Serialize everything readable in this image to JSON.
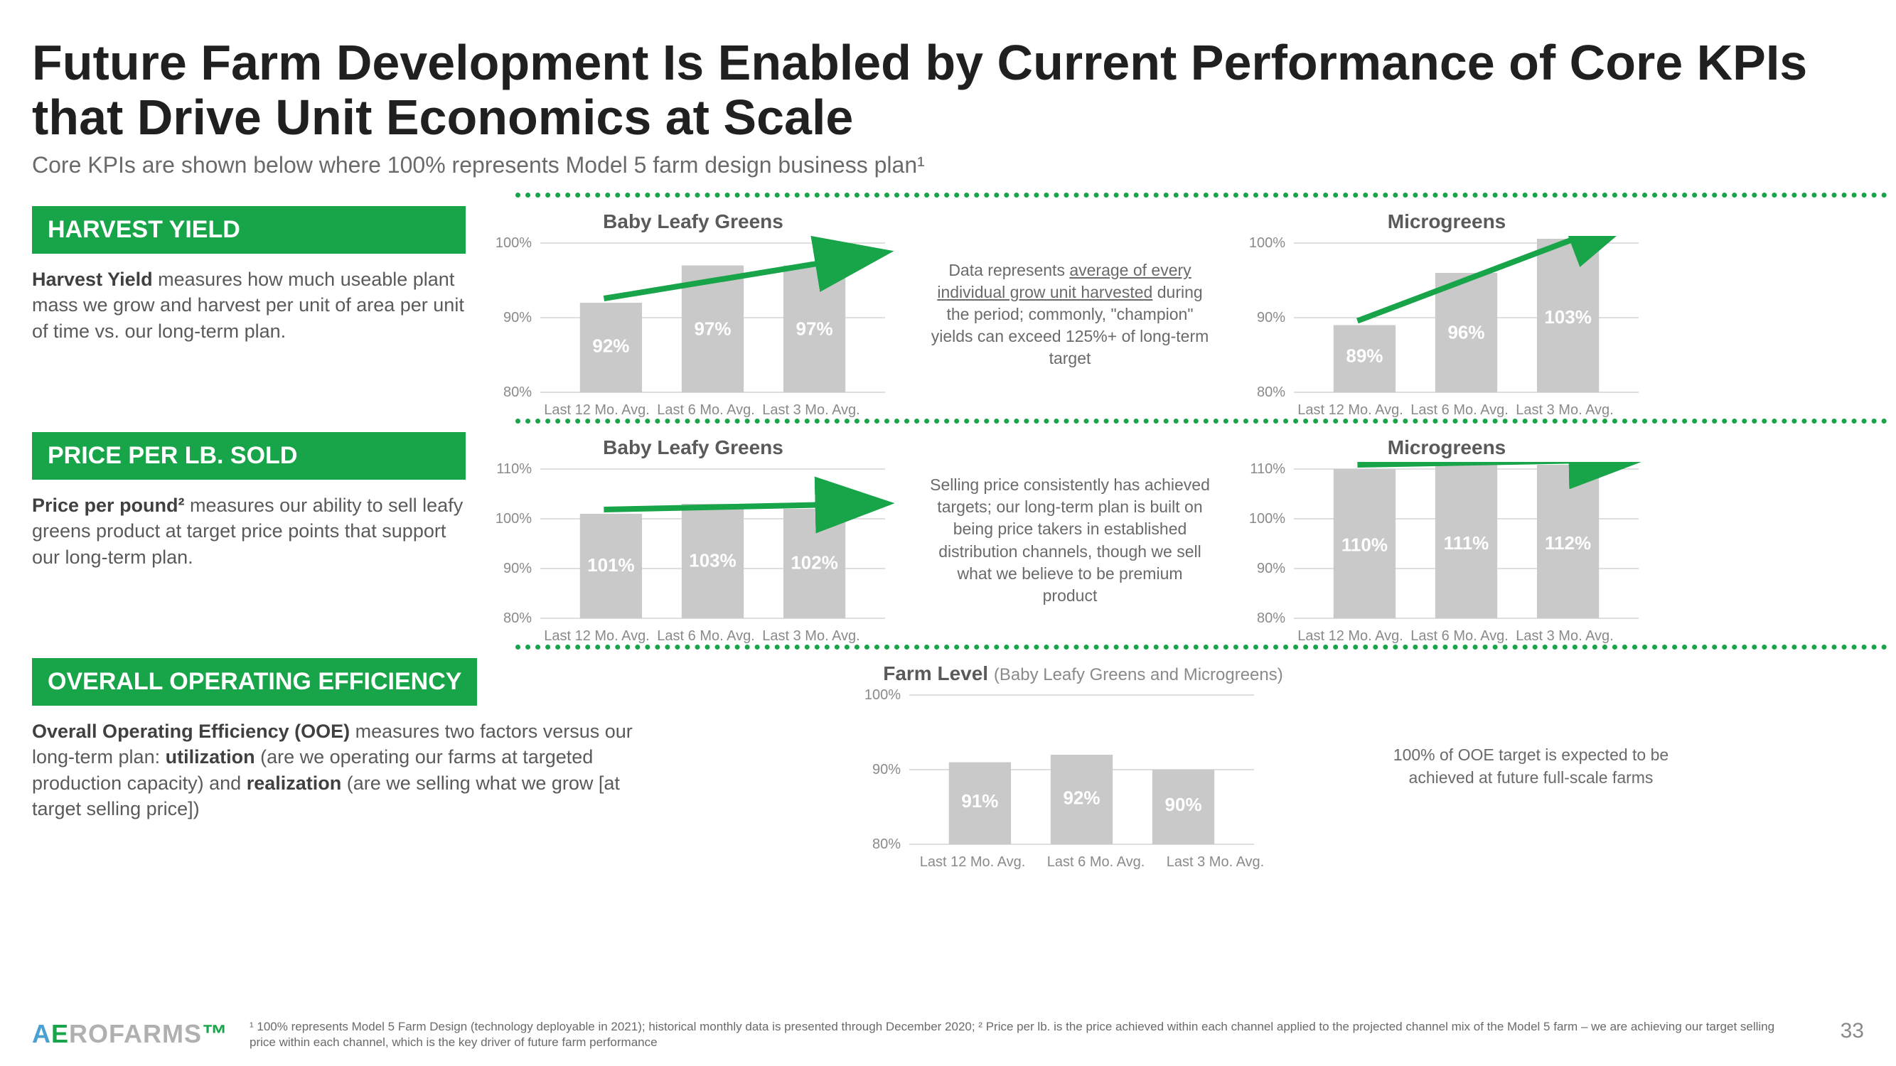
{
  "title": "Future Farm Development Is Enabled by Current Performance of Core KPIs that Drive Unit Economics at Scale",
  "subtitle": "Core KPIs are shown below where 100% represents Model 5 farm design business plan¹",
  "colors": {
    "brand_green": "#18a448",
    "bar_fill": "#c9c9c9",
    "bar_text": "#ffffff",
    "grid": "#bfbfbf",
    "axis_label": "#8a8a8a",
    "arrow": "#18a448"
  },
  "x_categories": [
    "Last 12 Mo. Avg.",
    "Last 6 Mo. Avg.",
    "Last 3 Mo. Avg."
  ],
  "sections": [
    {
      "header": "HARVEST YIELD",
      "desc_html": "<b>Harvest Yield</b> measures how much useable plant mass we grow and harvest per unit of area per unit of time vs. our long-term plan.",
      "charts": [
        {
          "title": "Baby Leafy Greens",
          "ymin": 80,
          "ymax": 100,
          "ystep": 10,
          "values": [
            92,
            97,
            97
          ],
          "arrow": true
        },
        {
          "title": "Microgreens",
          "ymin": 80,
          "ymax": 100,
          "ystep": 10,
          "values": [
            89,
            96,
            103
          ],
          "arrow": true
        }
      ],
      "note_html": "Data represents <u>average of every individual grow unit harvested</u> during the period; commonly, \"champion\" yields can exceed 125%+ of long-term target"
    },
    {
      "header": "PRICE PER LB. SOLD",
      "desc_html": "<b>Price per pound²</b> measures our ability to sell leafy greens product at target price points that support our long-term plan.",
      "charts": [
        {
          "title": "Baby Leafy Greens",
          "ymin": 80,
          "ymax": 110,
          "ystep": 10,
          "values": [
            101,
            103,
            102
          ],
          "arrow": true
        },
        {
          "title": "Microgreens",
          "ymin": 80,
          "ymax": 110,
          "ystep": 10,
          "values": [
            110,
            111,
            112
          ],
          "arrow": true
        }
      ],
      "note_html": "Selling price consistently has achieved targets; our long-term plan is built on being price takers in established distribution channels, though we sell what we believe to be premium product"
    },
    {
      "header": "OVERALL OPERATING EFFICIENCY",
      "desc_html": "<b>Overall Operating Efficiency (OOE)</b> measures two factors versus our long-term plan: <b>utilization</b> (are we operating our farms at targeted production capacity) and <b>realization</b> (are we selling what we grow [at target selling price])",
      "desc_wide": true,
      "charts": [
        {
          "title": "Farm Level",
          "subtitle": "(Baby Leafy Greens and Microgreens)",
          "ymin": 80,
          "ymax": 100,
          "ystep": 10,
          "values": [
            91,
            92,
            90
          ],
          "arrow": false
        }
      ],
      "note_html": "100% of OOE target is expected to be achieved at future full-scale farms",
      "centered_chart": true
    }
  ],
  "footnote": "¹ 100% represents Model 5 Farm Design (technology deployable in 2021); historical monthly data is presented through December 2020; ² Price per lb. is the price achieved within each channel applied to the projected channel mix of the Model 5 farm – we are achieving our target selling price within each channel, which is the key driver of future farm performance",
  "page_number": "33",
  "logo_text": "AEROFARMS"
}
